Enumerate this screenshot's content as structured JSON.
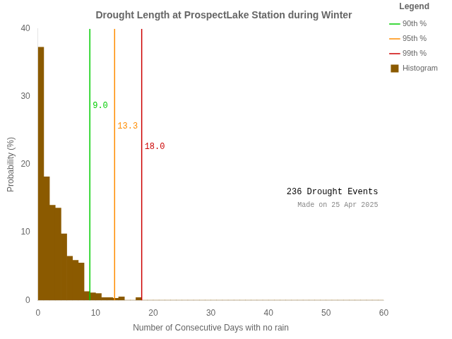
{
  "chart_data": {
    "type": "histogram",
    "title": "Drought Length at ProspectLake Station during Winter",
    "xlabel": "Number of Consecutive Days with no rain",
    "ylabel": "Probability (%)",
    "bins": [
      0,
      1,
      2,
      3,
      4,
      5,
      6,
      7,
      8,
      9,
      10,
      11,
      12,
      13,
      14,
      15,
      16,
      17,
      18,
      19,
      20,
      21,
      22,
      23,
      24,
      25,
      26,
      27,
      28,
      29,
      30,
      31,
      32,
      33,
      34,
      35,
      36,
      37,
      38,
      39,
      40,
      41,
      42,
      43,
      44,
      45,
      46,
      47,
      48,
      49,
      50,
      51,
      52,
      53,
      54,
      55,
      56,
      57,
      58,
      59,
      60
    ],
    "series": [
      {
        "name": "Histogram",
        "color": "#8B5A00",
        "values": [
          37.3,
          18.2,
          14.0,
          13.6,
          9.8,
          6.5,
          5.9,
          5.5,
          1.3,
          1.1,
          1.0,
          0.4,
          0.4,
          0.3,
          0.5,
          0.0,
          0.0,
          0.4,
          0.0,
          0.0,
          0.0,
          0.0,
          0.0,
          0.0,
          0.0,
          0.0,
          0.0,
          0.0,
          0.0,
          0.0,
          0.0,
          0.0,
          0.0,
          0.0,
          0.0,
          0.0,
          0.0,
          0.0,
          0.0,
          0.0,
          0.0,
          0.0,
          0.0,
          0.0,
          0.0,
          0.0,
          0.0,
          0.0,
          0.0,
          0.0,
          0.0,
          0.0,
          0.0,
          0.0,
          0.0,
          0.0,
          0.0,
          0.0,
          0.0,
          0.0
        ]
      }
    ],
    "vlines": [
      {
        "x": 9.0,
        "label": "9.0",
        "name": "90th %",
        "color": "#00CC00"
      },
      {
        "x": 13.3,
        "label": "13.3",
        "name": "95th %",
        "color": "#FF8C00"
      },
      {
        "x": 18.0,
        "label": "18.0",
        "name": "99th %",
        "color": "#CC0000"
      }
    ],
    "legend": "upper right",
    "legend_title": "Legend",
    "annotations": [
      "236 Drought Events",
      "Made on 25 Apr 2025"
    ],
    "xlim": [
      0,
      60
    ],
    "ylim": [
      0,
      40
    ],
    "xticks": [
      0,
      10,
      20,
      30,
      40,
      50,
      60
    ],
    "yticks": [
      0,
      10,
      20,
      30,
      40
    ],
    "grid": false
  }
}
